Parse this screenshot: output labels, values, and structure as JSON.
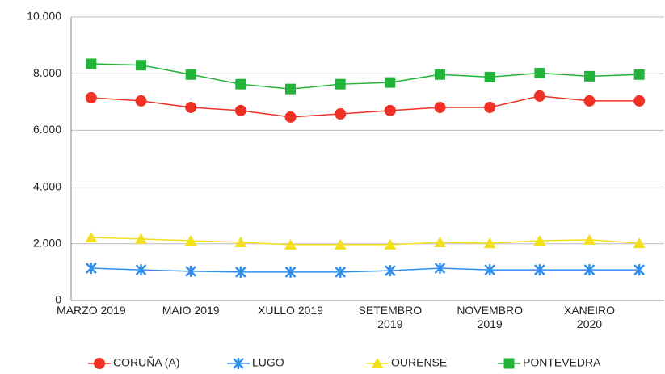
{
  "chart_data": {
    "type": "line",
    "categories": [
      "MARZO 2019",
      null,
      "MAIO 2019",
      null,
      "XULLO 2019",
      null,
      "SETEMBRO 2019",
      null,
      "NOVEMBRO 2019",
      null,
      "XANEIRO 2020",
      null
    ],
    "series": [
      {
        "name": "CORUÑA (A)",
        "color": "#ee3124",
        "marker": "circle",
        "values": [
          7150,
          7040,
          6810,
          6700,
          6470,
          6580,
          6700,
          6810,
          6810,
          7210,
          7040,
          7040
        ]
      },
      {
        "name": "LUGO",
        "color": "#2f8ff0",
        "marker": "star",
        "values": [
          1140,
          1080,
          1030,
          1000,
          1000,
          1000,
          1050,
          1140,
          1080,
          1080,
          1080,
          1080
        ]
      },
      {
        "name": "OURENSE",
        "color": "#f3df1c",
        "marker": "triangle",
        "values": [
          2220,
          2170,
          2110,
          2050,
          1970,
          1970,
          1970,
          2050,
          2020,
          2110,
          2140,
          2020
        ]
      },
      {
        "name": "PONTEVEDRA",
        "color": "#22b33a",
        "marker": "square",
        "values": [
          8350,
          8300,
          7970,
          7630,
          7460,
          7630,
          7690,
          7970,
          7880,
          8020,
          7910,
          7970
        ]
      }
    ],
    "ylim": [
      0,
      10000
    ],
    "yticks": [
      0,
      {
        "value": 2000,
        "label": "2.000"
      },
      {
        "value": 4000,
        "label": "4.000"
      },
      {
        "value": 6000,
        "label": "6.000"
      },
      {
        "value": 8000,
        "label": "8.000"
      },
      {
        "value": 10000,
        "label": "10.000"
      }
    ],
    "grid": true,
    "legend": "bottom"
  }
}
